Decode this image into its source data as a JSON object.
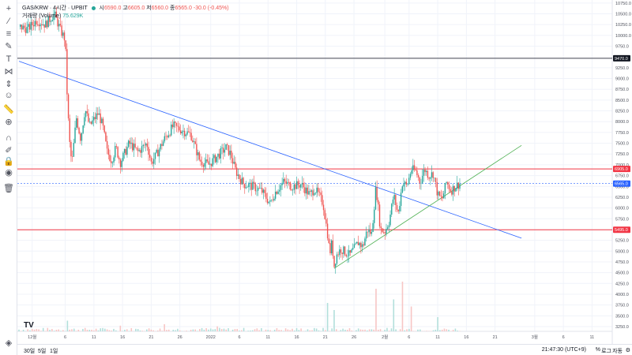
{
  "header": {
    "symbol": "GAS/KRW · 4시간 · UPBIT",
    "open_label": "시",
    "open": "6590.0",
    "high_label": "고",
    "high": "6605.0",
    "low_label": "저",
    "low": "6560.0",
    "close_label": "종",
    "close": "6565.0",
    "change": "-30.0 (-0.45%)",
    "volume_label": "거래량 (Volume)",
    "volume_value": "75.629K",
    "up_color": "#26a69a"
  },
  "bottom": {
    "timeframes": [
      "30일",
      "5일",
      "1일"
    ],
    "clock": "21:47:30 (UTC+9)",
    "percent": "%",
    "log": "로그",
    "auto": "자동"
  },
  "toolbar_icons": [
    "crosshair-icon",
    "trend-line-icon",
    "fib-icon",
    "brush-icon",
    "text-icon",
    "pattern-icon",
    "measure-icon",
    "emoji-icon",
    "ruler-icon",
    "zoom-icon",
    "magnet-icon",
    "lock-draw-icon",
    "lock-icon",
    "eye-icon",
    "trash-icon",
    "layers-icon"
  ],
  "chart_data": {
    "type": "candlestick",
    "title": "GAS/KRW · 4시간 · UPBIT",
    "y_axis": {
      "min": 3000,
      "max": 10750,
      "ticks": [
        10750,
        10500,
        10250,
        10000,
        9750,
        9470,
        9250,
        9000,
        8750,
        8500,
        8250,
        8000,
        7750,
        7500,
        7250,
        7000,
        6750,
        6500,
        6250,
        6000,
        5750,
        5495,
        5250,
        5000,
        4750,
        4500,
        4250,
        4000,
        3750,
        3500,
        3250
      ]
    },
    "x_axis": {
      "ticks": [
        {
          "label": "12월",
          "x": 0.03
        },
        {
          "label": "6",
          "x": 0.105
        },
        {
          "label": "11",
          "x": 0.17
        },
        {
          "label": "16",
          "x": 0.235
        },
        {
          "label": "21",
          "x": 0.3
        },
        {
          "label": "26",
          "x": 0.365
        },
        {
          "label": "2022",
          "x": 0.435
        },
        {
          "label": "6",
          "x": 0.5
        },
        {
          "label": "11",
          "x": 0.565
        },
        {
          "label": "16",
          "x": 0.63
        },
        {
          "label": "21",
          "x": 0.695
        },
        {
          "label": "26",
          "x": 0.76
        },
        {
          "label": "2월",
          "x": 0.83
        },
        {
          "label": "6",
          "x": 0.885
        },
        {
          "label": "11",
          "x": 0.95
        },
        {
          "label": "16",
          "x": 1.015
        },
        {
          "label": "21",
          "x": 1.08
        },
        {
          "label": "3월",
          "x": 1.17
        },
        {
          "label": "6",
          "x": 1.235
        },
        {
          "label": "11",
          "x": 1.3
        },
        {
          "label": "16",
          "x": 1.365
        }
      ]
    },
    "price_labels": [
      {
        "value": 9470,
        "text": "9470.0",
        "color": "#131722"
      },
      {
        "value": 6905,
        "text": "6905.0",
        "color": "#f23645"
      },
      {
        "value": 6565,
        "text": "6565.0",
        "color": "#2962ff"
      },
      {
        "value": 5495,
        "text": "5495.0",
        "color": "#f23645"
      }
    ],
    "horizontal_lines": [
      {
        "value": 9470,
        "color": "#434651"
      },
      {
        "value": 6905,
        "color": "#f23645"
      },
      {
        "value": 5495,
        "color": "#f23645"
      },
      {
        "value": 6565,
        "color": "#2962ff",
        "dashed": true
      }
    ],
    "trend_lines": [
      {
        "name": "downtrend",
        "color": "#2962ff",
        "from": [
          0.0,
          9400
        ],
        "to": [
          1.14,
          5300
        ]
      },
      {
        "name": "uptrend",
        "color": "#4caf50",
        "from": [
          0.715,
          4600
        ],
        "to": [
          1.14,
          7450
        ]
      }
    ],
    "price_path": [
      [
        0.0,
        10200
      ],
      [
        0.02,
        10150
      ],
      [
        0.04,
        10350
      ],
      [
        0.06,
        10250
      ],
      [
        0.08,
        10500
      ],
      [
        0.095,
        10100
      ],
      [
        0.105,
        9900
      ],
      [
        0.11,
        8400
      ],
      [
        0.115,
        7500
      ],
      [
        0.12,
        7000
      ],
      [
        0.13,
        8100
      ],
      [
        0.14,
        7600
      ],
      [
        0.15,
        8300
      ],
      [
        0.16,
        7900
      ],
      [
        0.18,
        8200
      ],
      [
        0.19,
        7900
      ],
      [
        0.2,
        7300
      ],
      [
        0.21,
        7100
      ],
      [
        0.22,
        7400
      ],
      [
        0.23,
        7050
      ],
      [
        0.25,
        7500
      ],
      [
        0.27,
        7300
      ],
      [
        0.29,
        7500
      ],
      [
        0.3,
        7050
      ],
      [
        0.31,
        7200
      ],
      [
        0.33,
        7600
      ],
      [
        0.35,
        7900
      ],
      [
        0.37,
        7800
      ],
      [
        0.39,
        7700
      ],
      [
        0.4,
        7400
      ],
      [
        0.41,
        7100
      ],
      [
        0.43,
        7000
      ],
      [
        0.45,
        7200
      ],
      [
        0.47,
        7400
      ],
      [
        0.48,
        7250
      ],
      [
        0.49,
        6900
      ],
      [
        0.5,
        6700
      ],
      [
        0.51,
        6550
      ],
      [
        0.53,
        6500
      ],
      [
        0.55,
        6400
      ],
      [
        0.56,
        6250
      ],
      [
        0.57,
        6100
      ],
      [
        0.58,
        6350
      ],
      [
        0.6,
        6600
      ],
      [
        0.62,
        6500
      ],
      [
        0.64,
        6550
      ],
      [
        0.66,
        6300
      ],
      [
        0.67,
        6450
      ],
      [
        0.68,
        6300
      ],
      [
        0.69,
        6100
      ],
      [
        0.7,
        5400
      ],
      [
        0.705,
        4950
      ],
      [
        0.71,
        5200
      ],
      [
        0.715,
        4650
      ],
      [
        0.72,
        4900
      ],
      [
        0.73,
        5050
      ],
      [
        0.75,
        4900
      ],
      [
        0.77,
        5200
      ],
      [
        0.78,
        5100
      ],
      [
        0.79,
        5500
      ],
      [
        0.8,
        5400
      ],
      [
        0.81,
        6500
      ],
      [
        0.82,
        5500
      ],
      [
        0.83,
        5450
      ],
      [
        0.84,
        5700
      ],
      [
        0.85,
        6300
      ],
      [
        0.86,
        5850
      ],
      [
        0.87,
        6600
      ],
      [
        0.88,
        6500
      ],
      [
        0.89,
        6900
      ],
      [
        0.9,
        6850
      ],
      [
        0.91,
        6600
      ],
      [
        0.92,
        6900
      ],
      [
        0.93,
        6750
      ],
      [
        0.94,
        6800
      ],
      [
        0.95,
        6300
      ],
      [
        0.96,
        6200
      ],
      [
        0.97,
        6600
      ],
      [
        0.98,
        6400
      ],
      [
        0.99,
        6500
      ],
      [
        1.0,
        6565
      ]
    ],
    "volume_spikes": [
      [
        0.11,
        0.15
      ],
      [
        0.23,
        0.08
      ],
      [
        0.33,
        0.1
      ],
      [
        0.45,
        0.07
      ],
      [
        0.7,
        0.4
      ],
      [
        0.715,
        0.3
      ],
      [
        0.81,
        0.6
      ],
      [
        0.85,
        0.45
      ],
      [
        0.87,
        0.7
      ],
      [
        0.89,
        0.35
      ],
      [
        0.95,
        0.2
      ]
    ]
  }
}
